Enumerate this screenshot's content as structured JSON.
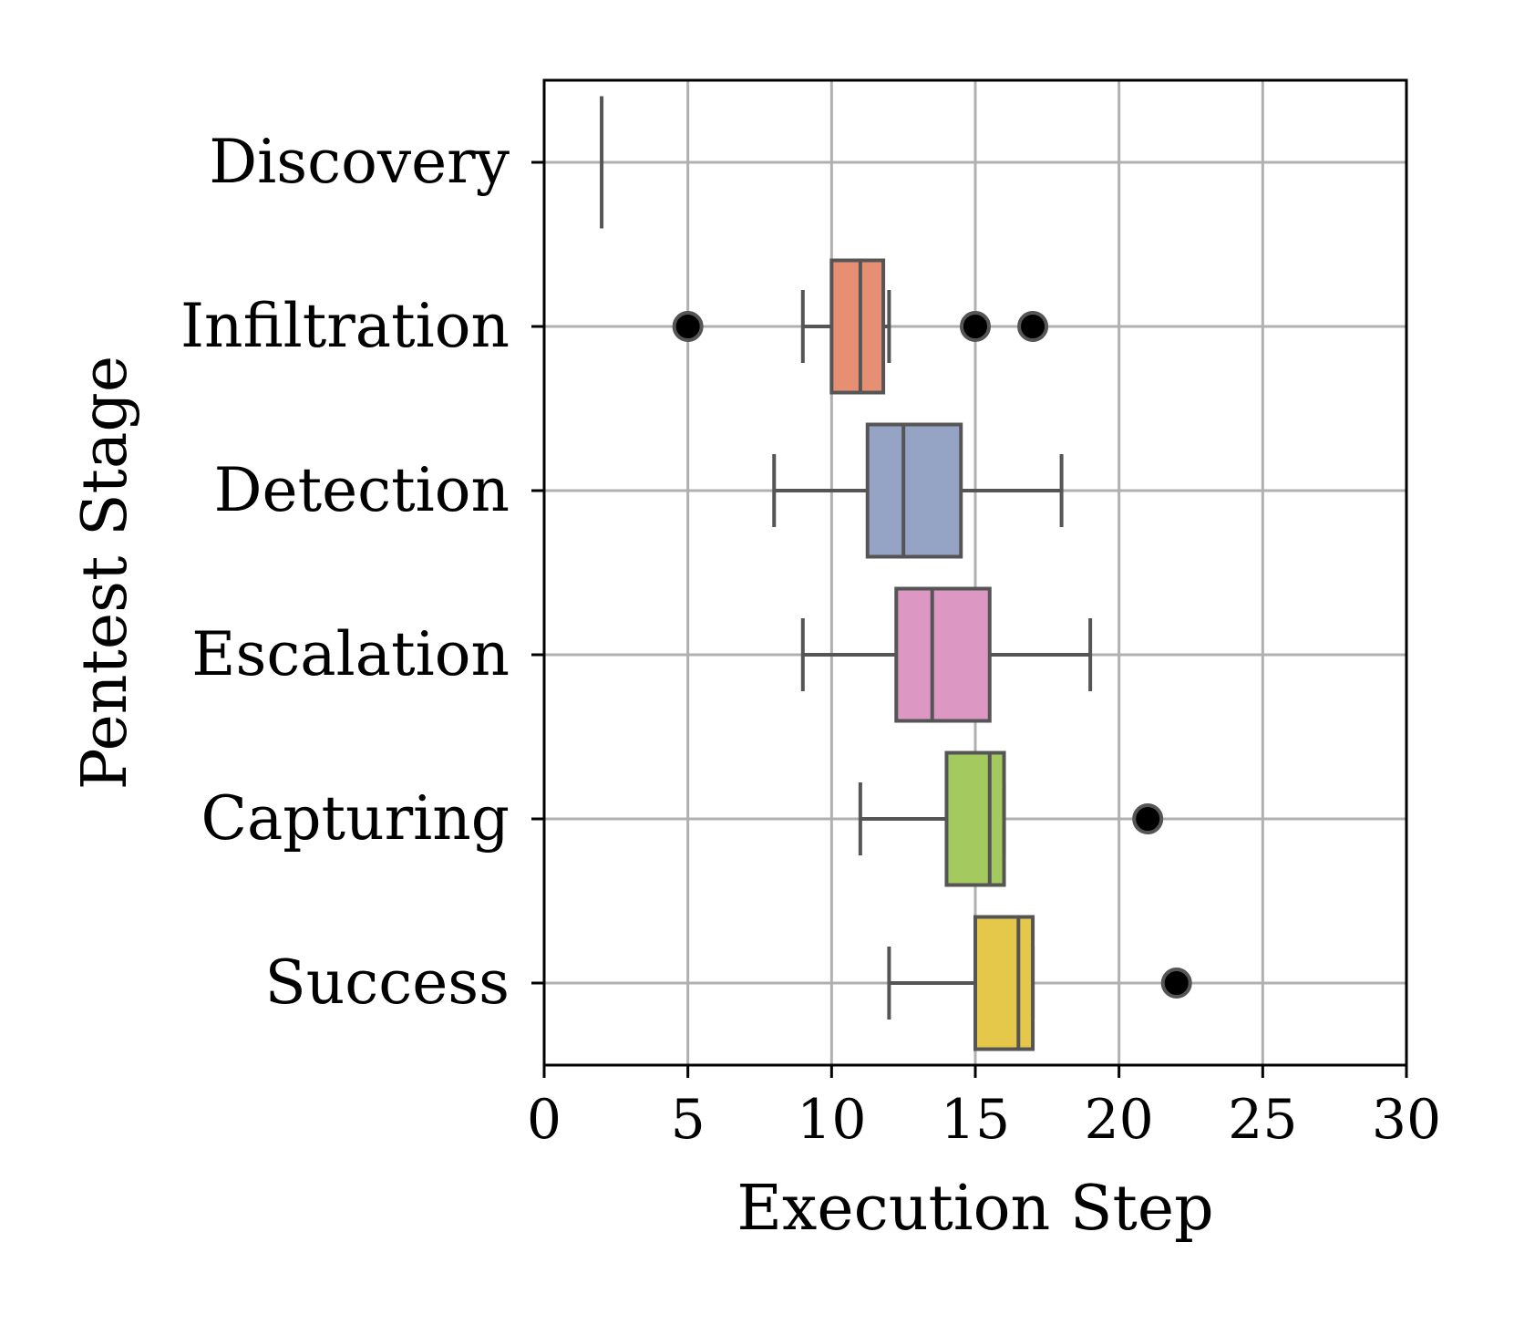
{
  "chart_data": {
    "type": "boxplot",
    "orientation": "horizontal",
    "title": "",
    "xlabel": "Execution Step",
    "ylabel": "Pentest Stage",
    "xlim": [
      0,
      30
    ],
    "xticks": [
      0,
      5,
      10,
      15,
      20,
      25,
      30
    ],
    "grid": true,
    "categories": [
      "Discovery",
      "Infiltration",
      "Detection",
      "Escalation",
      "Capturing",
      "Success"
    ],
    "boxes": [
      {
        "category": "Discovery",
        "whisker_low": 2,
        "q1": 2,
        "median": 2,
        "q3": 2,
        "whisker_high": 2,
        "outliers": [],
        "color": "#66c2a5"
      },
      {
        "category": "Infiltration",
        "whisker_low": 9,
        "q1": 10,
        "median": 11,
        "q3": 11.8,
        "whisker_high": 12,
        "outliers": [
          5,
          15,
          17
        ],
        "color": "#e78f72"
      },
      {
        "category": "Detection",
        "whisker_low": 8,
        "q1": 11.25,
        "median": 12.5,
        "q3": 14.5,
        "whisker_high": 18,
        "outliers": [],
        "color": "#95a4c4"
      },
      {
        "category": "Escalation",
        "whisker_low": 9,
        "q1": 12.25,
        "median": 13.5,
        "q3": 15.5,
        "whisker_high": 19,
        "outliers": [],
        "color": "#dc97c2"
      },
      {
        "category": "Capturing",
        "whisker_low": 11,
        "q1": 14,
        "median": 15.5,
        "q3": 16,
        "whisker_high": 16,
        "outliers": [
          21
        ],
        "color": "#a4ca5f"
      },
      {
        "category": "Success",
        "whisker_low": 12,
        "q1": 15,
        "median": 16.5,
        "q3": 17,
        "whisker_high": 17,
        "outliers": [
          22
        ],
        "color": "#e5c74a"
      }
    ],
    "colors": {
      "grid": "#b0b0b0",
      "box_edge": "#555555",
      "outlier": "#000000",
      "axis": "#000000"
    }
  }
}
